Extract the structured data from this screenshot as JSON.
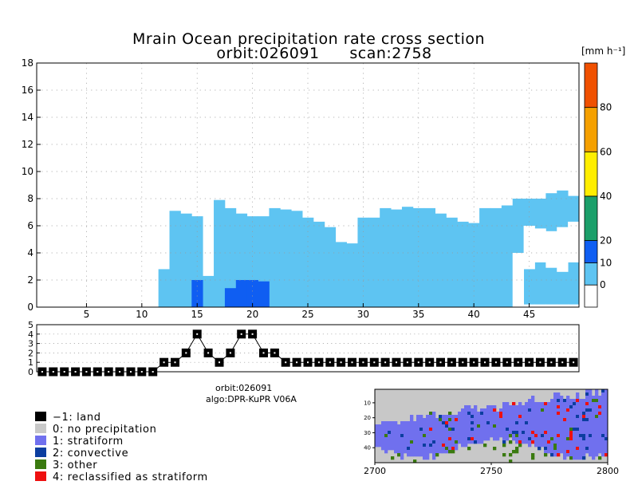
{
  "title": {
    "line1": "Mrain Ocean precipitation rate cross section",
    "line2_orbit": "orbit:026091",
    "line2_scan": "scan:2758"
  },
  "chart_data": [
    {
      "name": "cross-section",
      "type": "heatmap",
      "ylabel": "",
      "xlim": [
        1,
        49
      ],
      "ylim": [
        0,
        18
      ],
      "xticks": [
        5,
        10,
        15,
        20,
        25,
        30,
        35,
        40,
        45
      ],
      "yticks": [
        0,
        2,
        4,
        6,
        8,
        10,
        12,
        14,
        16,
        18
      ],
      "grid": true,
      "value_units": "mm h-1",
      "rain_columns_x": [
        12,
        13,
        14,
        15,
        16,
        17,
        18,
        19,
        20,
        21,
        22,
        23,
        24,
        25,
        26,
        27,
        28,
        29,
        30,
        31,
        32,
        33,
        34,
        35,
        36,
        37,
        38,
        39,
        40,
        41,
        42,
        43,
        44,
        45,
        46,
        47,
        48,
        49
      ],
      "rain_top_km": [
        2.8,
        7.1,
        6.9,
        6.7,
        2.3,
        7.9,
        7.3,
        6.9,
        6.7,
        6.7,
        7.3,
        7.2,
        7.1,
        6.6,
        6.3,
        5.9,
        4.8,
        4.7,
        6.6,
        6.6,
        7.3,
        7.2,
        7.4,
        7.3,
        7.3,
        6.9,
        6.6,
        6.3,
        6.2,
        7.3,
        7.3,
        7.5,
        8.0,
        8.0,
        8.0,
        8.4,
        8.6,
        8.2
      ],
      "rain_bottom_km": [
        0,
        0,
        0,
        0,
        0,
        0,
        0,
        0,
        0,
        0,
        0,
        0,
        0,
        0,
        0,
        0,
        0,
        0,
        0,
        0,
        0,
        0,
        0,
        0,
        0,
        0,
        0,
        0,
        0,
        0,
        0,
        0,
        0,
        0,
        0,
        0,
        0,
        0
      ],
      "gap_columns": [
        {
          "x": 44,
          "from_km": 0,
          "to_km": 4.0
        },
        {
          "x": 45,
          "from_km": 0,
          "to_km": 0.2
        },
        {
          "x": 46,
          "from_km": 0,
          "to_km": 0.2
        },
        {
          "x": 47,
          "from_km": 0,
          "to_km": 0.2
        },
        {
          "x": 48,
          "from_km": 0,
          "to_km": 0.2
        },
        {
          "x": 49,
          "from_km": 0,
          "to_km": 0.2
        },
        {
          "x": 45,
          "from_km": 2.8,
          "to_km": 6.0
        },
        {
          "x": 46,
          "from_km": 3.3,
          "to_km": 5.8
        },
        {
          "x": 47,
          "from_km": 2.9,
          "to_km": 5.6
        },
        {
          "x": 48,
          "from_km": 2.6,
          "to_km": 5.9
        },
        {
          "x": 49,
          "from_km": 3.3,
          "to_km": 6.3
        }
      ],
      "intense_cells": [
        {
          "x": 15,
          "from_km": 0,
          "to_km": 2.0
        },
        {
          "x": 18,
          "from_km": 0,
          "to_km": 1.4
        },
        {
          "x": 19,
          "from_km": 0,
          "to_km": 2.0
        },
        {
          "x": 20,
          "from_km": 0,
          "to_km": 2.0
        },
        {
          "x": 21,
          "from_km": 0,
          "to_km": 1.9
        }
      ],
      "colorbar": {
        "label": "[mm h⁻¹]",
        "tick_labels": [
          "0",
          "10",
          "20",
          "40",
          "60",
          "80"
        ],
        "bins": [
          {
            "from": -10,
            "to": 0,
            "color": "#ffffff"
          },
          {
            "from": 0,
            "to": 10,
            "color": "#5ec4f2"
          },
          {
            "from": 10,
            "to": 20,
            "color": "#0f5ef2"
          },
          {
            "from": 20,
            "to": 40,
            "color": "#1b9f6a"
          },
          {
            "from": 40,
            "to": 60,
            "color": "#ffee00"
          },
          {
            "from": 60,
            "to": 80,
            "color": "#f5a000"
          },
          {
            "from": 80,
            "to": 100,
            "color": "#f05000"
          }
        ]
      }
    },
    {
      "name": "rain-type-strip",
      "type": "line",
      "ylim": [
        0,
        5
      ],
      "yticks": [
        "0",
        "1",
        "2",
        "3",
        "4",
        "5"
      ],
      "x": [
        1,
        2,
        3,
        4,
        5,
        6,
        7,
        8,
        9,
        10,
        11,
        12,
        13,
        14,
        15,
        16,
        17,
        18,
        19,
        20,
        21,
        22,
        23,
        24,
        25,
        26,
        27,
        28,
        29,
        30,
        31,
        32,
        33,
        34,
        35,
        36,
        37,
        38,
        39,
        40,
        41,
        42,
        43,
        44,
        45,
        46,
        47,
        48,
        49
      ],
      "values": [
        0,
        0,
        0,
        0,
        0,
        0,
        0,
        0,
        0,
        0,
        0,
        1,
        1,
        2,
        4,
        2,
        1,
        2,
        4,
        4,
        2,
        2,
        1,
        1,
        1,
        1,
        1,
        1,
        1,
        1,
        1,
        1,
        1,
        1,
        1,
        1,
        1,
        1,
        1,
        1,
        1,
        1,
        1,
        1,
        1,
        1,
        1,
        1,
        1
      ]
    },
    {
      "name": "swath-map",
      "type": "heatmap",
      "xlim": [
        2700,
        2800
      ],
      "xticks": [
        "2700",
        "2750",
        "2800"
      ],
      "yticks": [
        "10",
        "20",
        "30",
        "40"
      ]
    }
  ],
  "info": {
    "orbit": "orbit:026091",
    "algo": "algo:DPR-KuPR V06A"
  },
  "legend": [
    {
      "label": "−1: land",
      "color": "#000000"
    },
    {
      "label": "0: no precipitation",
      "color": "#c8c8c8"
    },
    {
      "label": "1: stratiform",
      "color": "#7070ee"
    },
    {
      "label": "2: convective",
      "color": "#0c3ea0"
    },
    {
      "label": "3: other",
      "color": "#3a7a10"
    },
    {
      "label": "4: reclassified as stratiform",
      "color": "#ee1010"
    }
  ],
  "colors": {
    "rain_light": "#5ec4f2",
    "rain_intense": "#0f5ef2",
    "grid": "#9a9a9a",
    "map_ocean": "#7070ee",
    "map_noprecip": "#c8c8c8",
    "map_conv": "#0c3ea0",
    "map_other": "#3a7a10",
    "map_reclass": "#ee1010"
  }
}
